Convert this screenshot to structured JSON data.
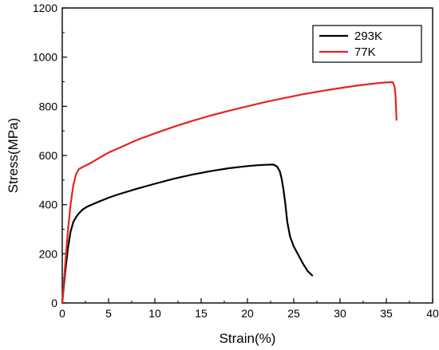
{
  "chart_data": {
    "type": "line",
    "title": "",
    "xlabel": "Strain(%)",
    "ylabel": "Stress(MPa)",
    "xlim": [
      0,
      40
    ],
    "ylim": [
      0,
      1200
    ],
    "xticks": [
      0,
      5,
      10,
      15,
      20,
      25,
      30,
      35,
      40
    ],
    "yticks": [
      0,
      200,
      400,
      600,
      800,
      1000,
      1200
    ],
    "grid": false,
    "legend_position": "top-right",
    "series": [
      {
        "name": "293K",
        "color": "#000000",
        "x": [
          0,
          0.3,
          0.6,
          0.9,
          1.2,
          1.5,
          1.8,
          2.2,
          2.6,
          3,
          4,
          5,
          6,
          8,
          10,
          12,
          14,
          16,
          18,
          20,
          21,
          22,
          22.8,
          23.2,
          23.5,
          23.7,
          23.9,
          24.1,
          24.3,
          24.6,
          25,
          25.5,
          26,
          26.5,
          27
        ],
        "y": [
          0,
          120,
          220,
          290,
          330,
          350,
          365,
          380,
          390,
          397,
          413,
          428,
          441,
          464,
          485,
          505,
          522,
          536,
          548,
          557,
          560,
          562,
          563,
          555,
          535,
          505,
          460,
          400,
          330,
          270,
          230,
          195,
          160,
          130,
          112
        ]
      },
      {
        "name": "77K",
        "color": "#e8231d",
        "x": [
          0,
          0.3,
          0.6,
          0.9,
          1.2,
          1.5,
          1.8,
          2.2,
          2.6,
          3,
          4,
          5,
          6,
          8,
          10,
          12,
          14,
          16,
          18,
          20,
          22,
          24,
          26,
          28,
          30,
          32,
          34,
          35,
          35.7,
          35.9,
          36,
          36.05,
          36.1
        ],
        "y": [
          0,
          150,
          290,
          400,
          480,
          525,
          545,
          553,
          560,
          568,
          590,
          612,
          628,
          662,
          690,
          716,
          740,
          762,
          782,
          800,
          818,
          834,
          849,
          862,
          874,
          885,
          894,
          897,
          898,
          880,
          840,
          790,
          745
        ]
      }
    ]
  }
}
